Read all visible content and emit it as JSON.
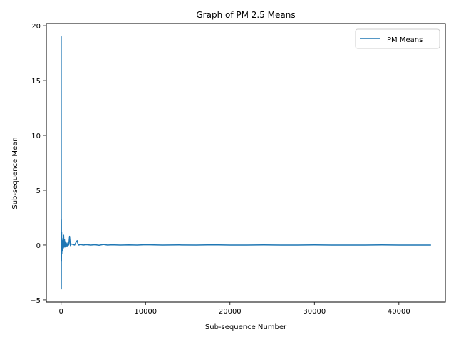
{
  "chart_data": {
    "type": "line",
    "title": "Graph of PM 2.5 Means",
    "xlabel": "Sub-sequence Number",
    "ylabel": "Sub-sequence Mean",
    "xlim": [
      -1750,
      45500
    ],
    "ylim": [
      -5.2,
      20.2
    ],
    "xticks": [
      0,
      10000,
      20000,
      30000,
      40000
    ],
    "xtick_labels": [
      "0",
      "10000",
      "20000",
      "30000",
      "40000"
    ],
    "yticks": [
      -5,
      0,
      5,
      10,
      15,
      20
    ],
    "ytick_labels": [
      "−5",
      "0",
      "5",
      "10",
      "15",
      "20"
    ],
    "grid": false,
    "legend_position": "upper right",
    "series": [
      {
        "name": "PM Means",
        "color": "#1f77b4",
        "x": [
          0,
          10,
          20,
          30,
          40,
          60,
          80,
          100,
          130,
          160,
          200,
          250,
          300,
          350,
          400,
          450,
          500,
          550,
          600,
          650,
          700,
          800,
          900,
          1000,
          1100,
          1200,
          1400,
          1600,
          1800,
          1900,
          2000,
          2100,
          2300,
          2600,
          3000,
          3500,
          4000,
          4500,
          5000,
          5500,
          6000,
          7000,
          8000,
          9000,
          10000,
          12000,
          14000,
          16000,
          18000,
          20000,
          22000,
          24000,
          26000,
          28000,
          30000,
          32000,
          34000,
          36000,
          38000,
          40000,
          42000,
          43800
        ],
        "y": [
          0.0,
          19.0,
          -4.0,
          2.3,
          -1.5,
          1.2,
          -0.8,
          0.6,
          -0.5,
          0.4,
          0.3,
          -0.3,
          0.9,
          -0.2,
          0.5,
          -0.1,
          0.3,
          -0.2,
          0.2,
          0.1,
          -0.1,
          0.2,
          0.0,
          0.8,
          -0.05,
          0.1,
          0.05,
          0.0,
          0.3,
          0.4,
          0.1,
          0.0,
          0.05,
          0.0,
          0.04,
          0.0,
          0.03,
          -0.02,
          0.05,
          0.0,
          0.02,
          0.0,
          0.01,
          0.0,
          0.03,
          0.0,
          0.01,
          0.0,
          0.02,
          0.0,
          0.0,
          0.01,
          0.0,
          0.0,
          0.01,
          0.0,
          0.0,
          0.0,
          0.01,
          0.0,
          0.0,
          0.0
        ]
      }
    ]
  }
}
